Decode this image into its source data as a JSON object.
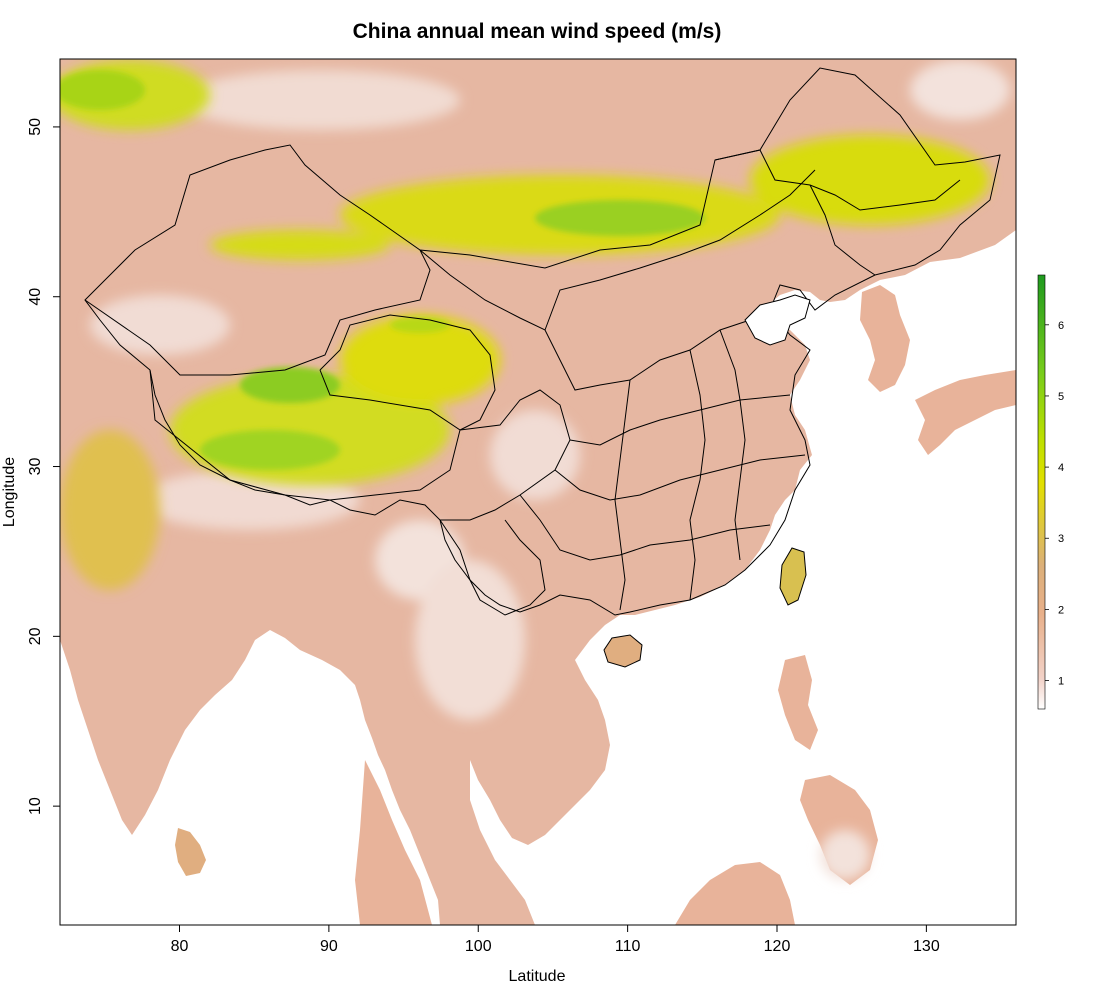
{
  "title": "China annual mean wind speed (m/s)",
  "x_axis": {
    "label": "Latitude",
    "range": [
      72,
      136
    ],
    "ticks": [
      80,
      90,
      100,
      110,
      120,
      130
    ]
  },
  "y_axis": {
    "label": "Longitude",
    "range": [
      3,
      54
    ],
    "ticks": [
      10,
      20,
      30,
      40,
      50
    ]
  },
  "legend": {
    "placement": "right",
    "range": [
      0.6,
      6.7
    ],
    "ticks": [
      1,
      2,
      3,
      4,
      5,
      6
    ],
    "colors": [
      "#ffffff",
      "#f2d2c8",
      "#e8b08a",
      "#dcb07a",
      "#e2e000",
      "#bde000",
      "#76cc1c",
      "#1f9a1f"
    ]
  },
  "map": {
    "type": "raster",
    "variable": "annual mean wind speed",
    "units": "m/s",
    "background_ocean": "#ffffff",
    "border_color": "#000000",
    "high_wind_regions": [
      "Inner Mongolia",
      "Tibetan Plateau",
      "Mongolia",
      "Xinjiang"
    ],
    "low_wind_regions": [
      "Sichuan Basin",
      "Southeast Asia",
      "Himalayan foothills"
    ]
  }
}
